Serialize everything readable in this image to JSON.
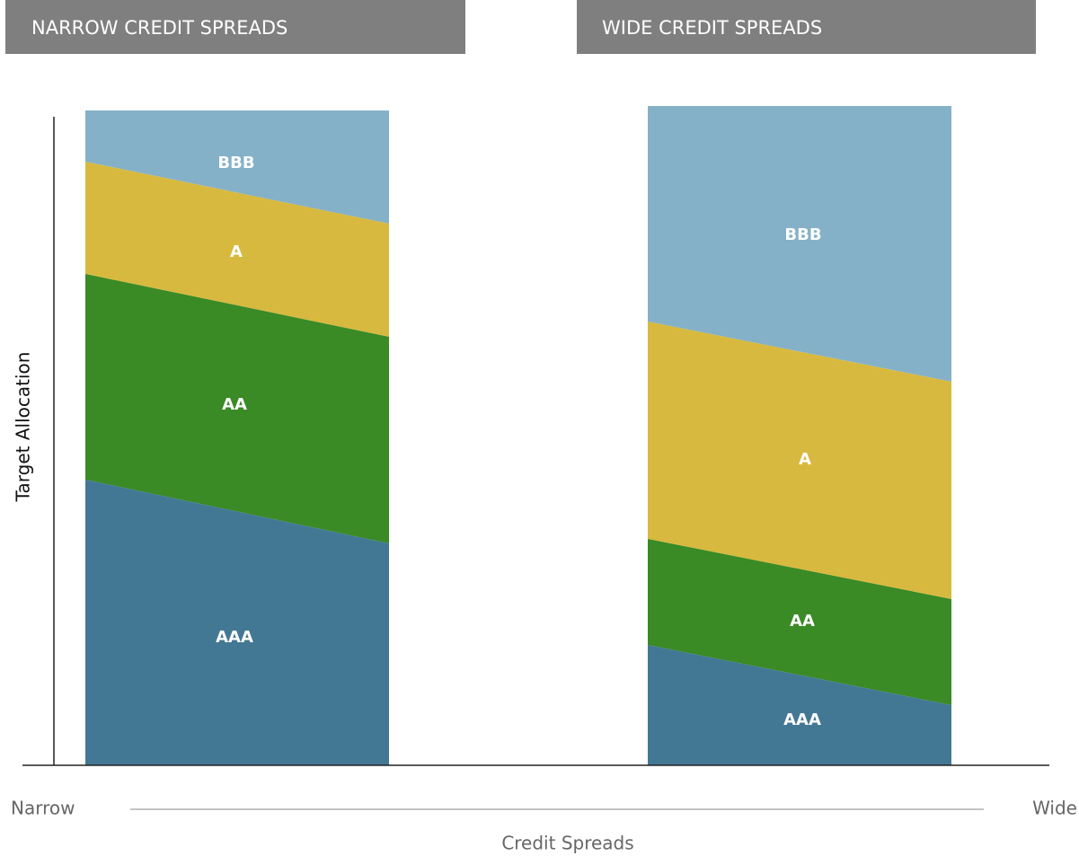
{
  "panels": [
    {
      "title": "NARROW CREDIT SPREADS",
      "segments": [
        "BBB",
        "A",
        "AA",
        "AAA"
      ]
    },
    {
      "title": "WIDE CREDIT SPREADS",
      "segments": [
        "BBB",
        "A",
        "AA",
        "AAA"
      ]
    }
  ],
  "y_axis_label": "Target Allocation",
  "x_axis": {
    "left_label": "Narrow",
    "right_label": "Wide",
    "title": "Credit Spreads"
  }
}
